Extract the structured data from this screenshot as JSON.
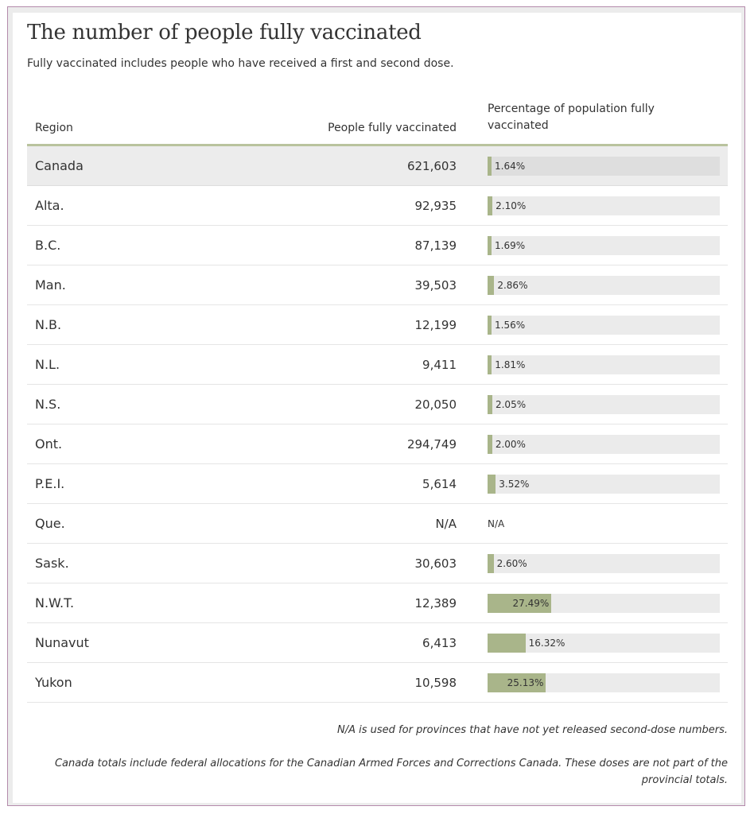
{
  "title": "The number of people fully vaccinated",
  "subtitle": "Fully vaccinated includes people who have received a first and second dose.",
  "columns": {
    "region": "Region",
    "people": "People fully vaccinated",
    "percentage": "Percentage of population fully vaccinated"
  },
  "colors": {
    "bar_fill": "#a9b58a",
    "bar_track": "#ebebeb",
    "header_rule": "#b9c39e",
    "highlight_row": "#ececec"
  },
  "chart_data": {
    "type": "table",
    "xlim": [
      0,
      100
    ],
    "rows": [
      {
        "region": "Canada",
        "people": "621,603",
        "pct": 1.64,
        "pct_label": "1.64%",
        "highlight": true
      },
      {
        "region": "Alta.",
        "people": "92,935",
        "pct": 2.1,
        "pct_label": "2.10%"
      },
      {
        "region": "B.C.",
        "people": "87,139",
        "pct": 1.69,
        "pct_label": "1.69%"
      },
      {
        "region": "Man.",
        "people": "39,503",
        "pct": 2.86,
        "pct_label": "2.86%"
      },
      {
        "region": "N.B.",
        "people": "12,199",
        "pct": 1.56,
        "pct_label": "1.56%"
      },
      {
        "region": "N.L.",
        "people": "9,411",
        "pct": 1.81,
        "pct_label": "1.81%"
      },
      {
        "region": "N.S.",
        "people": "20,050",
        "pct": 2.05,
        "pct_label": "2.05%"
      },
      {
        "region": "Ont.",
        "people": "294,749",
        "pct": 2.0,
        "pct_label": "2.00%"
      },
      {
        "region": "P.E.I.",
        "people": "5,614",
        "pct": 3.52,
        "pct_label": "3.52%"
      },
      {
        "region": "Que.",
        "people": "N/A",
        "pct": null,
        "pct_label": "N/A"
      },
      {
        "region": "Sask.",
        "people": "30,603",
        "pct": 2.6,
        "pct_label": "2.60%"
      },
      {
        "region": "N.W.T.",
        "people": "12,389",
        "pct": 27.49,
        "pct_label": "27.49%"
      },
      {
        "region": "Nunavut",
        "people": "6,413",
        "pct": 16.32,
        "pct_label": "16.32%"
      },
      {
        "region": "Yukon",
        "people": "10,598",
        "pct": 25.13,
        "pct_label": "25.13%"
      }
    ]
  },
  "notes": {
    "na_note": "N/A is used for provinces that have not yet released second-dose numbers.",
    "canada_note": "Canada totals include federal allocations for the Canadian Armed Forces and Corrections Canada. These doses are not part of the provincial totals."
  }
}
